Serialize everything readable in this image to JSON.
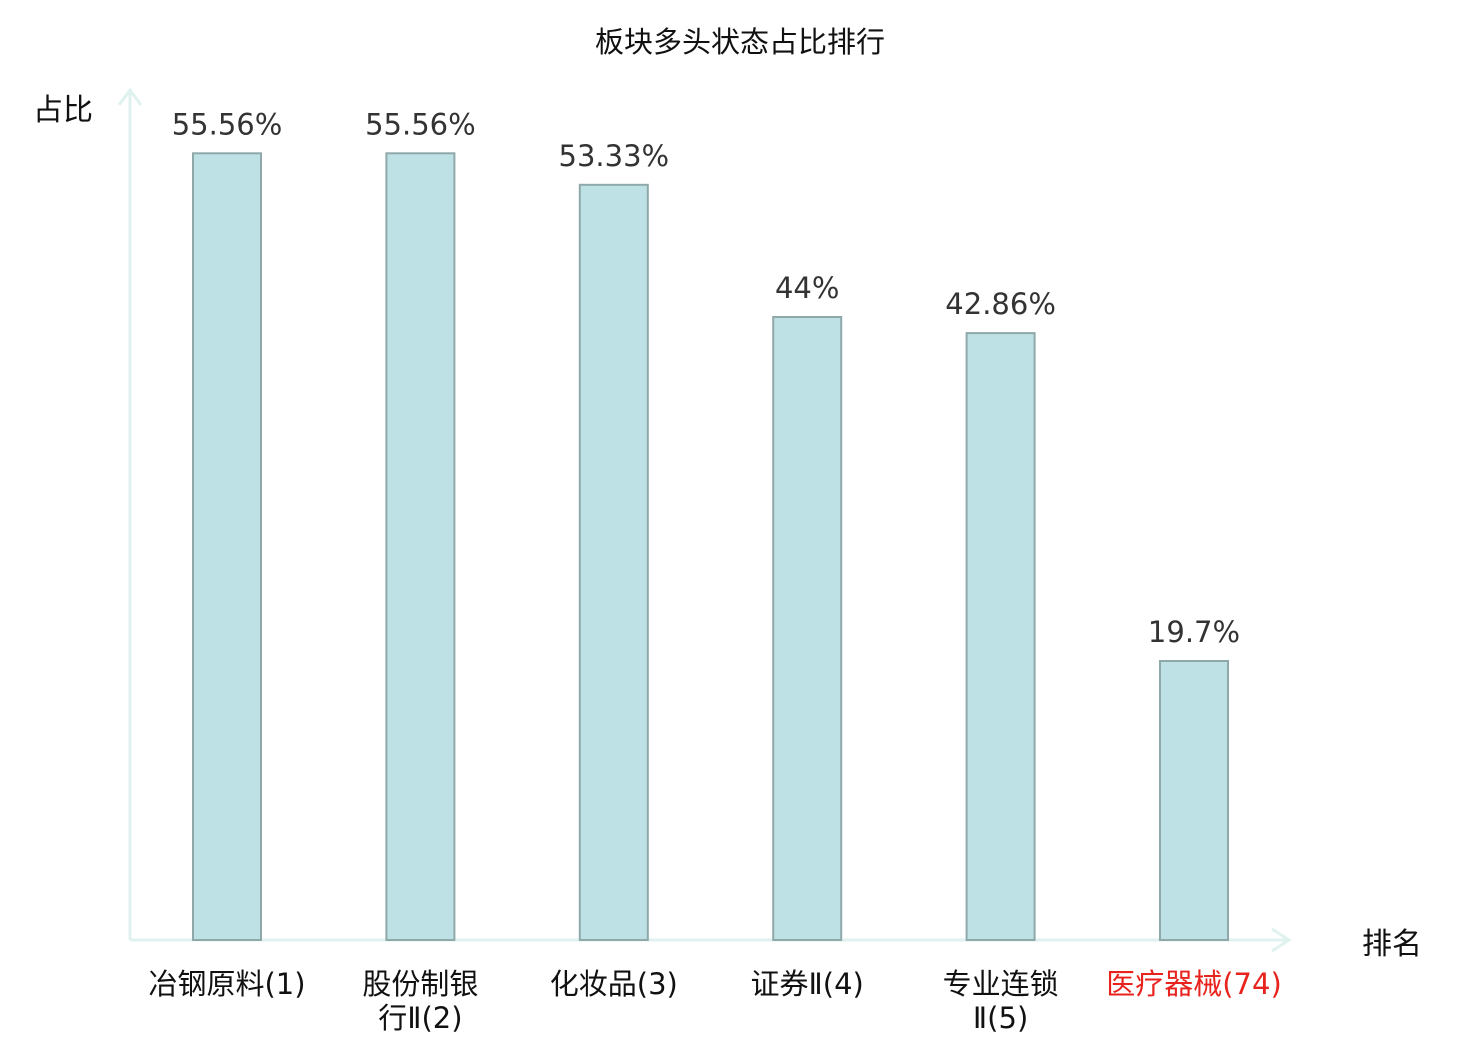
{
  "chart_data": {
    "type": "bar",
    "title": "板块多头状态占比排行",
    "ylabel": "占比",
    "xlabel": "排名",
    "categories": [
      [
        "冶钢原料(1)"
      ],
      [
        "股份制银",
        "行Ⅱ(2)"
      ],
      [
        "化妆品(3)"
      ],
      [
        "证券Ⅱ(4)"
      ],
      [
        "专业连锁",
        "Ⅱ(5)"
      ],
      [
        "医疗器械(74)"
      ]
    ],
    "values": [
      55.56,
      55.56,
      53.33,
      44,
      42.86,
      19.7
    ],
    "value_labels": [
      "55.56%",
      "55.56%",
      "53.33%",
      "44%",
      "42.86%",
      "19.7%"
    ],
    "highlight_index": 5,
    "ylim": [
      0,
      60
    ],
    "grid": false,
    "colors": {
      "bar_fill": "#bde1e4",
      "bar_stroke": "#8fa9ab",
      "axis": "#dff2ef",
      "highlight_text": "#e8231d"
    }
  }
}
